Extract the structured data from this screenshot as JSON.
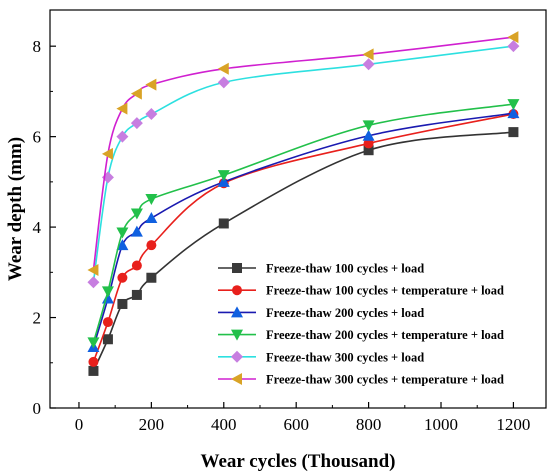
{
  "chart_data": {
    "type": "line",
    "title": "",
    "xlabel": "Wear cycles (Thousand)",
    "ylabel": "Wear depth (mm)",
    "xlim": [
      -80,
      1290
    ],
    "ylim": [
      0,
      8.8
    ],
    "xticks": [
      0,
      200,
      400,
      600,
      800,
      1000,
      1200
    ],
    "yticks": [
      0,
      2,
      4,
      6,
      8
    ],
    "grid": false,
    "legend_position": "lower-right",
    "x": [
      40,
      80,
      120,
      160,
      200,
      400,
      800,
      1200
    ],
    "series": [
      {
        "name": "Freeze-thaw 100 cycles + load",
        "color": "#3a3a3a",
        "marker": "square",
        "values": [
          0.82,
          1.52,
          2.3,
          2.5,
          2.88,
          4.08,
          5.7,
          6.1
        ]
      },
      {
        "name": "Freeze-thaw 100 cycles + temperature + load",
        "color": "#e8201c",
        "marker": "circle",
        "values": [
          1.02,
          1.9,
          2.88,
          3.15,
          3.6,
          4.97,
          5.85,
          6.5
        ]
      },
      {
        "name": "Freeze-thaw 200 cycles + load",
        "color": "#1060e0",
        "marker": "triangle-up",
        "values": [
          1.35,
          2.42,
          3.6,
          3.9,
          4.2,
          5.0,
          6.02,
          6.52
        ]
      },
      {
        "name": "Freeze-thaw 200 cycles + temperature + load",
        "color": "#22c04a",
        "marker": "triangle-down",
        "values": [
          1.45,
          2.58,
          3.88,
          4.3,
          4.62,
          5.15,
          6.25,
          6.72
        ]
      },
      {
        "name": "Freeze-thaw 300 cycles + load",
        "color": "#c77ee0",
        "marker": "diamond",
        "values": [
          2.78,
          5.1,
          6.0,
          6.3,
          6.5,
          7.2,
          7.6,
          8.0
        ]
      },
      {
        "name": "Freeze-thaw 300 cycles + temperature + load",
        "color": "#d9a326",
        "marker": "triangle-left",
        "values": [
          3.05,
          5.62,
          6.62,
          6.95,
          7.15,
          7.5,
          7.82,
          8.2
        ]
      }
    ],
    "line_colors": [
      "#333333",
      "#e8201c",
      "#1a1ab0",
      "#22c04a",
      "#2de0e0",
      "#d020d0"
    ]
  }
}
